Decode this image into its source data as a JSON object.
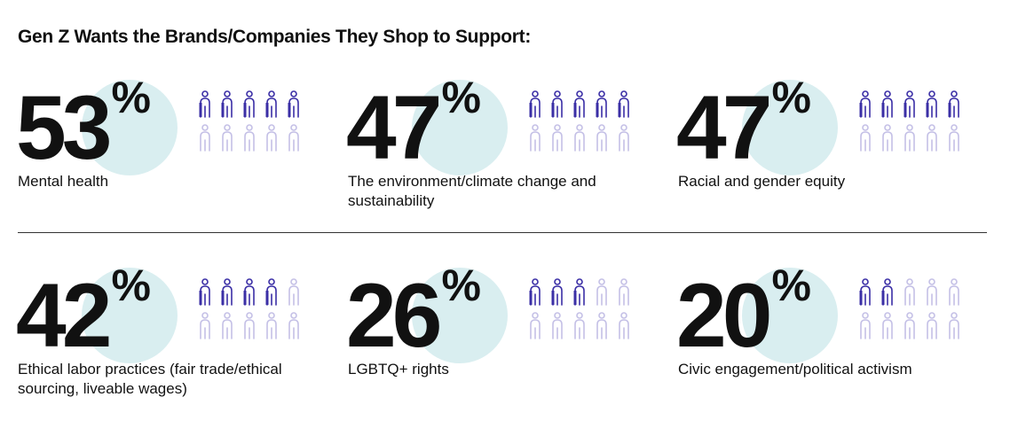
{
  "title": "Gen Z Wants the Brands/Companies They Shop to Support:",
  "colors": {
    "filled": "#3b2fa6",
    "empty": "#c4c0e6",
    "circle": "#d9eef0"
  },
  "chart_data": {
    "type": "icon-array",
    "title": "Gen Z Wants the Brands/Companies They Shop to Support:",
    "unit": "%",
    "icons_per_stat": 10,
    "categories": [
      "Mental health",
      "The environment/climate change and sustainability",
      "Racial and gender equity",
      "Ethical labor practices (fair trade/ethical sourcing, liveable wages)",
      "LGBTQ+ rights",
      "Civic engagement/political activism"
    ],
    "values": [
      53,
      47,
      47,
      42,
      26,
      20
    ]
  },
  "stats": [
    {
      "value": "53",
      "unit": "%",
      "label": "Mental health"
    },
    {
      "value": "47",
      "unit": "%",
      "label": "The environment/climate change and sustainability"
    },
    {
      "value": "47",
      "unit": "%",
      "label": "Racial and gender equity"
    },
    {
      "value": "42",
      "unit": "%",
      "label": "Ethical labor practices (fair trade/ethical sourcing, liveable wages)"
    },
    {
      "value": "26",
      "unit": "%",
      "label": "LGBTQ+ rights"
    },
    {
      "value": "20",
      "unit": "%",
      "label": "Civic engagement/political activism"
    }
  ]
}
